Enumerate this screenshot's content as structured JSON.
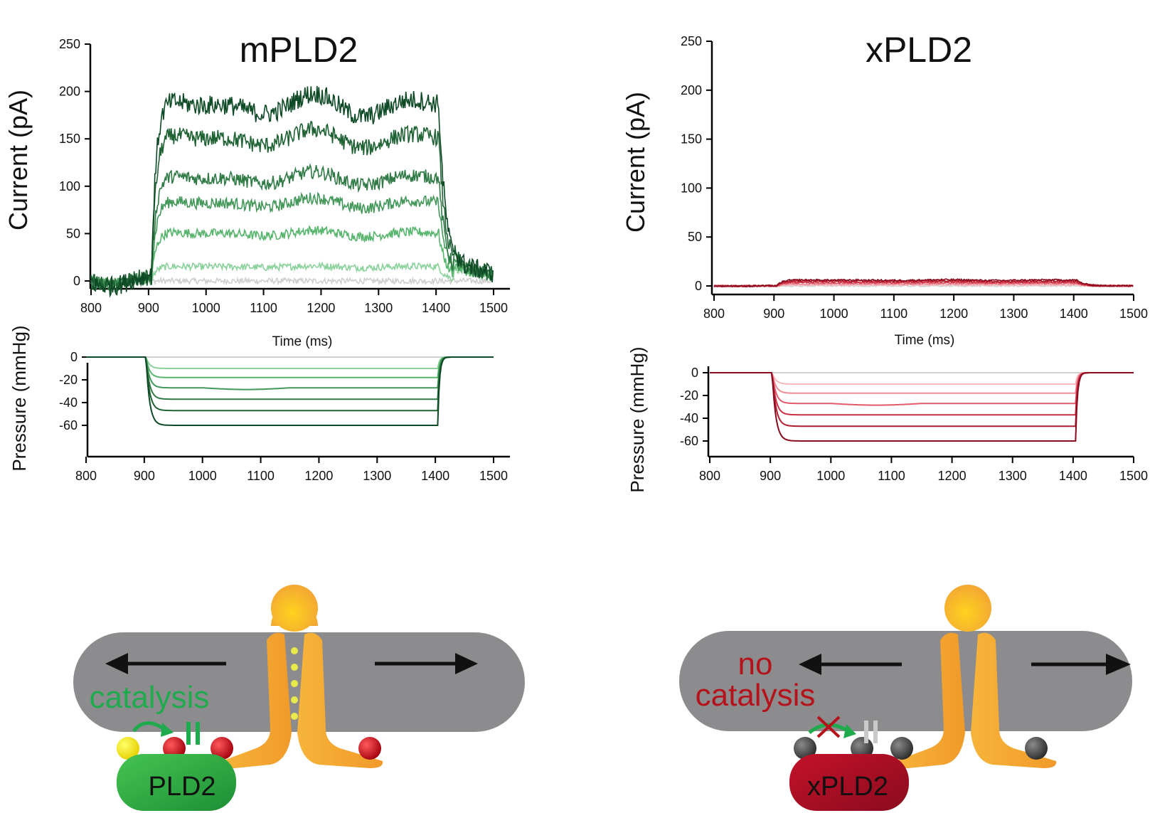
{
  "colors": {
    "green_series": [
      "#cfcfcf",
      "#8ad19c",
      "#58b56d",
      "#43985a",
      "#2f7a45",
      "#1f6234",
      "#0e4a25"
    ],
    "red_series": [
      "#d0d0d0",
      "#f6b7bd",
      "#ee8b94",
      "#e05a68",
      "#cd2f42",
      "#b01d30",
      "#8a0b1e"
    ],
    "membrane": "#8c8c8e",
    "channel": "#f4a531",
    "catalysis_green": "#1faa4e",
    "no_catalysis_red": "#b5121b"
  },
  "panels": [
    {
      "title": "mPLD2",
      "current_ylabel": "Current (pA)",
      "current_xlabel": "Time (ms)",
      "pressure_ylabel": "Pressure (mmHg)",
      "current_yticks": [
        "0",
        "50",
        "100",
        "150",
        "200",
        "250"
      ],
      "pressure_yticks": [
        "0",
        "-20",
        "-40",
        "-60"
      ],
      "xticks": [
        "800",
        "900",
        "1000",
        "1100",
        "1200",
        "1300",
        "1400",
        "1500"
      ]
    },
    {
      "title": "xPLD2",
      "current_ylabel": "Current (pA)",
      "current_xlabel": "Time (ms)",
      "pressure_ylabel": "Pressure (mmHg)",
      "current_yticks": [
        "0",
        "50",
        "100",
        "150",
        "200",
        "250"
      ],
      "pressure_yticks": [
        "0",
        "-20",
        "-40",
        "-60"
      ],
      "xticks": [
        "800",
        "900",
        "1000",
        "1100",
        "1200",
        "1300",
        "1400",
        "1500"
      ]
    }
  ],
  "chart_data": [
    {
      "type": "line",
      "title": "mPLD2",
      "xlabel": "Time (ms)",
      "ylabel": "Current (pA)",
      "xlim": [
        800,
        1500
      ],
      "ylim": [
        0,
        250
      ],
      "step_on_ms": 905,
      "step_off_ms": 1405,
      "series_plateau_pA": [
        0,
        15,
        50,
        82,
        108,
        150,
        185
      ]
    },
    {
      "type": "line",
      "title": "",
      "xlabel": "",
      "ylabel": "Pressure (mmHg)",
      "xlim": [
        800,
        1500
      ],
      "ylim": [
        -70,
        0
      ],
      "series_pressure_mmHg": [
        0,
        -10,
        -18,
        -27,
        -37,
        -47,
        -60
      ]
    },
    {
      "type": "line",
      "title": "xPLD2",
      "xlabel": "Time (ms)",
      "ylabel": "Current (pA)",
      "xlim": [
        800,
        1500
      ],
      "ylim": [
        0,
        250
      ],
      "step_on_ms": 905,
      "step_off_ms": 1405,
      "series_plateau_pA": [
        0,
        1,
        2,
        3,
        4,
        5,
        6
      ]
    },
    {
      "type": "line",
      "title": "",
      "xlabel": "",
      "ylabel": "Pressure (mmHg)",
      "xlim": [
        800,
        1500
      ],
      "ylim": [
        -70,
        0
      ],
      "series_pressure_mmHg": [
        0,
        -10,
        -18,
        -27,
        -37,
        -47,
        -60
      ]
    }
  ],
  "cartoons": [
    {
      "enzyme_label": "PLD2",
      "status_label": "catalysis"
    },
    {
      "enzyme_label": "xPLD2",
      "status_label_line1": "no",
      "status_label_line2": "catalysis"
    }
  ]
}
